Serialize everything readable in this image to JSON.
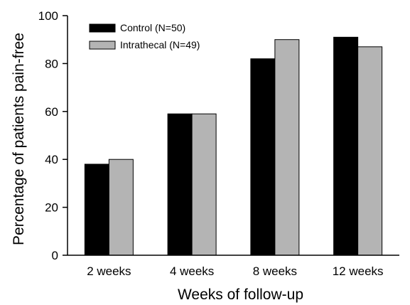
{
  "chart_data": {
    "type": "bar",
    "categories": [
      "2 weeks",
      "4 weeks",
      "8 weeks",
      "12 weeks"
    ],
    "series": [
      {
        "name": "Control (N=50)",
        "values": [
          38,
          59,
          82,
          91
        ],
        "color": "#000000"
      },
      {
        "name": "Intrathecal (N=49)",
        "values": [
          40,
          59,
          90,
          87
        ],
        "color": "#b4b4b4"
      }
    ],
    "xlabel": "Weeks of follow-up",
    "ylabel": "Percentage of patients pain-free",
    "ylim": [
      0,
      100
    ],
    "yticks": [
      0,
      20,
      40,
      60,
      80,
      100
    ],
    "legend_position": "top-left",
    "grid": false
  }
}
